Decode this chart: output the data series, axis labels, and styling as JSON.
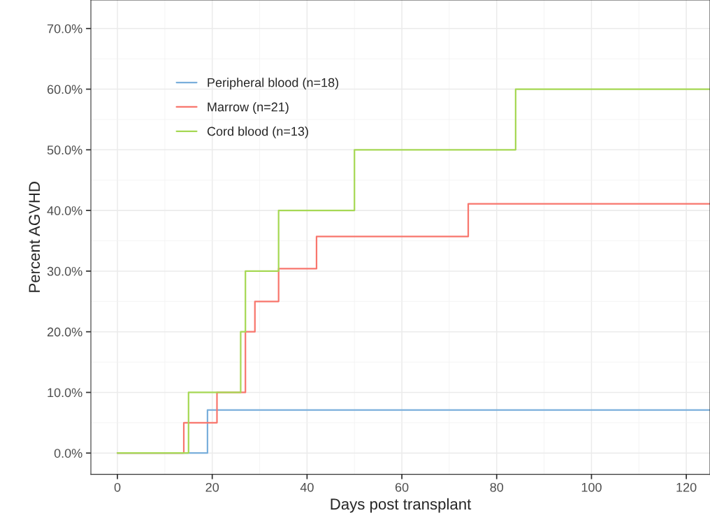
{
  "chart_data": {
    "type": "step",
    "xlabel": "Days post transplant",
    "ylabel": "Percent AGVHD",
    "series": [
      {
        "name": "Peripheral blood (n=18)",
        "color": "#7aafdb",
        "x": [
          0,
          19,
          125
        ],
        "values": [
          0,
          7.1,
          7.1
        ]
      },
      {
        "name": "Marrow (n=21)",
        "color": "#f8766d",
        "x": [
          0,
          14,
          21,
          27,
          29,
          34,
          42,
          74,
          125
        ],
        "values": [
          0,
          5,
          10,
          20,
          25,
          30.4,
          35.7,
          41.1,
          41.1
        ]
      },
      {
        "name": "Cord blood (n=13)",
        "color": "#a6d854",
        "x": [
          0,
          15,
          26,
          27,
          34,
          50,
          84,
          125
        ],
        "values": [
          0,
          10,
          20,
          30,
          40,
          50,
          60,
          60
        ]
      }
    ],
    "xlim": [
      -5.6,
      125
    ],
    "xticks": [
      0,
      20,
      40,
      60,
      80,
      100,
      120
    ],
    "ylim": [
      -3.5,
      74.7
    ],
    "yticks": [
      {
        "value": 0,
        "label": "0.0%"
      },
      {
        "value": 10,
        "label": "10.0%"
      },
      {
        "value": 20,
        "label": "20.0%"
      },
      {
        "value": 30,
        "label": "30.0%"
      },
      {
        "value": 40,
        "label": "40.0%"
      },
      {
        "value": 50,
        "label": "50.0%"
      },
      {
        "value": 60,
        "label": "60.0%"
      },
      {
        "value": 70,
        "label": "70.0%"
      }
    ],
    "grid": true,
    "legend": "top left",
    "line_style": "solid"
  }
}
